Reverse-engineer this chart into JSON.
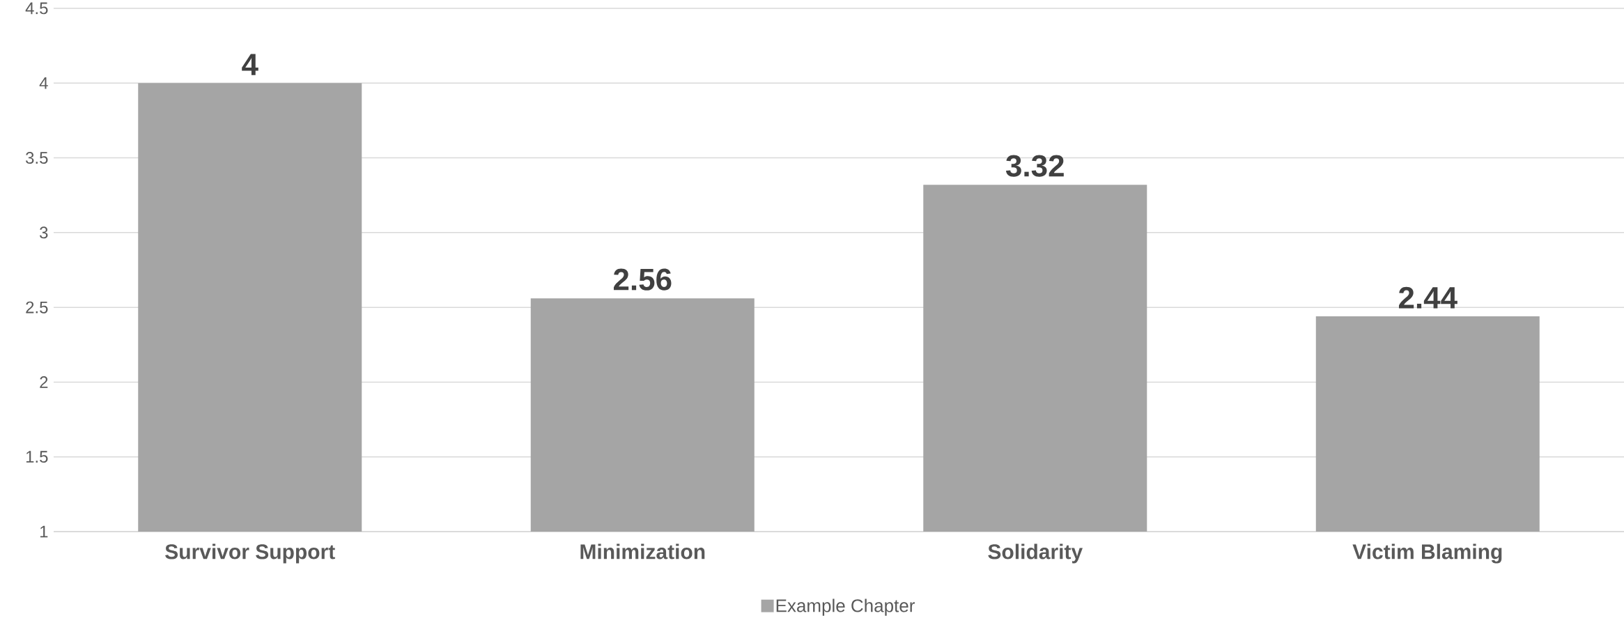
{
  "chart_data": {
    "type": "bar",
    "categories": [
      "Survivor Support",
      "Minimization",
      "Solidarity",
      "Victim Blaming"
    ],
    "series": [
      {
        "name": "Example Chapter",
        "color": "#a5a5a5",
        "values": [
          4,
          2.56,
          3.32,
          2.44
        ]
      }
    ],
    "ylim": [
      1,
      4.5
    ],
    "yticks": [
      1,
      1.5,
      2,
      2.5,
      3,
      3.5,
      4,
      4.5
    ],
    "grid": "y",
    "legend": "bottom",
    "data_labels": true
  }
}
